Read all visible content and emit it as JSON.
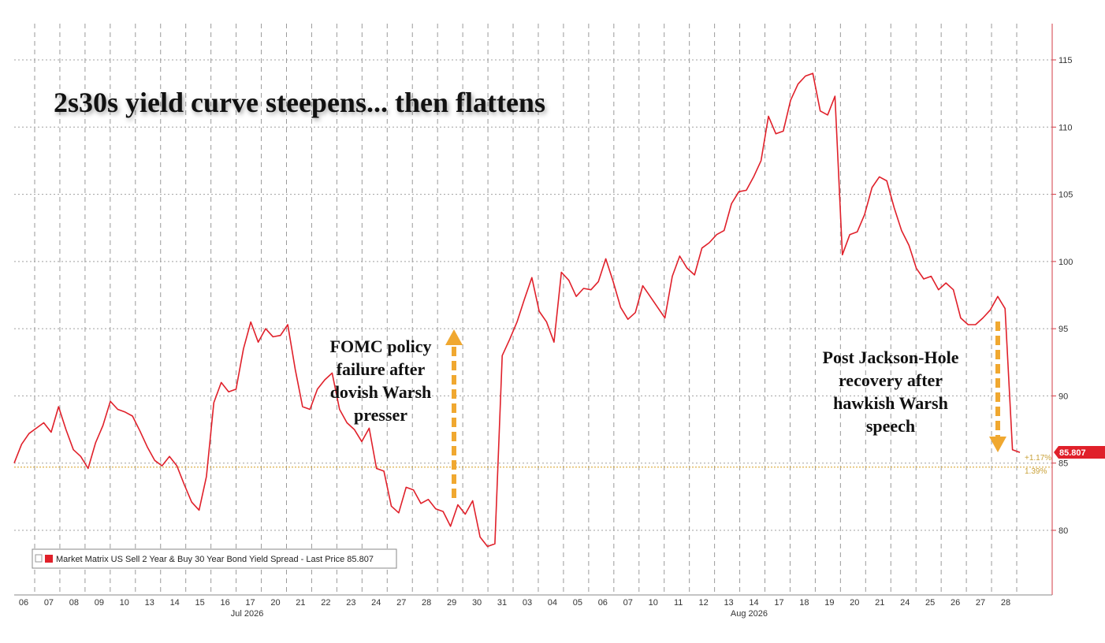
{
  "chart_data": {
    "type": "line",
    "title": "2s30s yield curve steepens... then flattens",
    "series": [
      {
        "name": "Market Matrix US Sell 2 Year & Buy 30 Year Bond Yield Spread",
        "color": "#e0202a",
        "values": [
          85.0,
          86.4,
          87.2,
          87.6,
          88.0,
          87.3,
          89.2,
          87.5,
          86.0,
          85.5,
          84.6,
          86.5,
          87.8,
          89.6,
          89.0,
          88.8,
          88.5,
          87.4,
          86.2,
          85.2,
          84.8,
          85.5,
          84.8,
          83.4,
          82.1,
          81.5,
          84.0,
          89.5,
          91.0,
          90.3,
          90.5,
          93.5,
          95.5,
          94.0,
          95.0,
          94.4,
          94.5,
          95.3,
          92.0,
          89.2,
          89.0,
          90.5,
          91.2,
          91.7,
          89.0,
          88.0,
          87.5,
          86.6,
          87.6,
          84.6,
          84.4,
          81.8,
          81.3,
          83.2,
          83.0,
          82.0,
          82.3,
          81.6,
          81.4,
          80.3,
          81.9,
          81.2,
          82.2,
          79.5,
          78.8,
          79.0,
          93.0,
          94.2,
          95.5,
          97.2,
          98.8,
          96.3,
          95.5,
          94.0,
          99.2,
          98.6,
          97.4,
          98.0,
          97.9,
          98.5,
          100.2,
          98.5,
          96.6,
          95.7,
          96.2,
          98.2,
          97.4,
          96.6,
          95.8,
          98.9,
          100.4,
          99.5,
          99.0,
          101.0,
          101.4,
          102.0,
          102.3,
          104.3,
          105.2,
          105.3,
          106.3,
          107.5,
          110.8,
          109.5,
          109.7,
          112.0,
          113.2,
          113.8,
          114.0,
          111.2,
          110.9,
          112.3,
          100.5,
          102.0,
          102.2,
          103.5,
          105.5,
          106.3,
          106.0,
          104.0,
          102.3,
          101.2,
          99.5,
          98.7,
          98.9,
          97.9,
          98.4,
          97.9,
          95.8,
          95.3,
          95.3,
          95.8,
          96.4,
          97.4,
          96.5,
          86.0,
          85.8
        ]
      }
    ],
    "x_tick_labels": [
      "06",
      "07",
      "08",
      "09",
      "10",
      "13",
      "14",
      "15",
      "16",
      "17",
      "20",
      "21",
      "22",
      "23",
      "24",
      "27",
      "28",
      "29",
      "30",
      "31",
      "03",
      "04",
      "05",
      "06",
      "07",
      "10",
      "11",
      "12",
      "13",
      "14",
      "17",
      "18",
      "19",
      "20",
      "21",
      "24",
      "25",
      "26",
      "27",
      "28"
    ],
    "month_labels": [
      "Jul 2026",
      "Aug 2026"
    ],
    "y_tick_labels": [
      "80",
      "85",
      "90",
      "95",
      "100",
      "105",
      "110",
      "115"
    ],
    "ylim": [
      75,
      118
    ],
    "grid": true,
    "legend": {
      "position": "bottom-left",
      "text": "Market Matrix US Sell 2 Year & Buy 30 Year Bond Yield Spread - Last Price 85.807"
    },
    "last_price_label": "85.807",
    "minor_labels": [
      "+1.17%",
      "1.39%"
    ],
    "reference_level": 84.7,
    "annotations": [
      {
        "text_lines": [
          "FOMC policy",
          "failure after",
          "dovish Warsh",
          "presser"
        ],
        "arrow_direction": "up",
        "arrow_color": "#f0a830"
      },
      {
        "text_lines": [
          "Post Jackson-Hole",
          "recovery after",
          "hawkish Warsh",
          "speech"
        ],
        "arrow_direction": "down",
        "arrow_color": "#f0a830"
      }
    ]
  }
}
